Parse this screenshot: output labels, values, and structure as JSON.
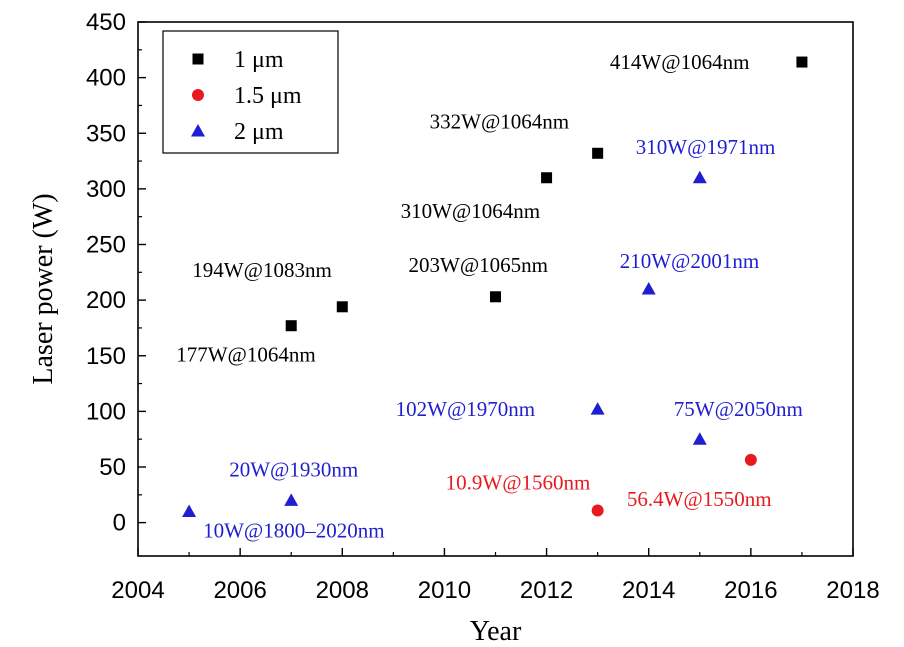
{
  "chart_data": {
    "type": "scatter",
    "xlabel": "Year",
    "ylabel": "Laser power (W)",
    "xlim": [
      2004,
      2018
    ],
    "ylim": [
      -30,
      450
    ],
    "xticks": [
      "2004",
      "2006",
      "2008",
      "2010",
      "2012",
      "2014",
      "2016",
      "2018"
    ],
    "yticks": [
      "0",
      "50",
      "100",
      "150",
      "200",
      "250",
      "300",
      "350",
      "400",
      "450"
    ],
    "legend": {
      "placement": "top-left"
    },
    "series": [
      {
        "name": "1 μm",
        "marker": "square",
        "color": "#000000",
        "points": [
          {
            "x": 2007,
            "y": 177,
            "label": "177W@1064nm"
          },
          {
            "x": 2008,
            "y": 194,
            "label": "194W@1083nm"
          },
          {
            "x": 2011,
            "y": 203,
            "label": "203W@1065nm"
          },
          {
            "x": 2012,
            "y": 310,
            "label": "310W@1064nm"
          },
          {
            "x": 2013,
            "y": 332,
            "label": "332W@1064nm"
          },
          {
            "x": 2017,
            "y": 414,
            "label": "414W@1064nm"
          }
        ]
      },
      {
        "name": "1.5 μm",
        "marker": "circle",
        "color": "#e8191f",
        "points": [
          {
            "x": 2013,
            "y": 10.9,
            "label": "10.9W@1560nm"
          },
          {
            "x": 2016,
            "y": 56.4,
            "label": "56.4W@1550nm"
          }
        ]
      },
      {
        "name": "2 μm",
        "marker": "triangle",
        "color": "#1f1fd1",
        "points": [
          {
            "x": 2005,
            "y": 10,
            "label": "10W@1800–2020nm"
          },
          {
            "x": 2007,
            "y": 20,
            "label": "20W@1930nm"
          },
          {
            "x": 2013,
            "y": 102,
            "label": "102W@1970nm"
          },
          {
            "x": 2014,
            "y": 210,
            "label": "210W@2001nm"
          },
          {
            "x": 2015,
            "y": 75,
            "label": "75W@2050nm"
          },
          {
            "x": 2015,
            "y": 310,
            "label": "310W@1971nm"
          }
        ]
      }
    ]
  }
}
